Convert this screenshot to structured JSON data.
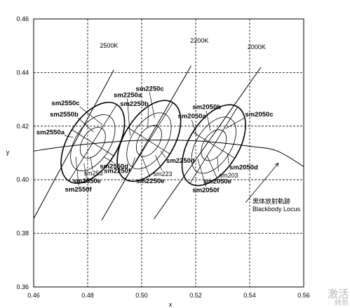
{
  "chart_data": {
    "type": "scatter",
    "xlabel": "x",
    "ylabel": "y",
    "xlim": [
      0.46,
      0.56
    ],
    "ylim": [
      0.36,
      0.46
    ],
    "xticks": [
      "0.46",
      "0.48",
      "0.50",
      "0.52",
      "0.54",
      "0.56"
    ],
    "yticks": [
      "0.36",
      "0.38",
      "0.40",
      "0.42",
      "0.44",
      "0.46"
    ],
    "grid": true,
    "blackbody_locus": {
      "label_line1": "黒体放射軌跡",
      "label_line2": "Blackbody Locus",
      "points": [
        [
          0.46,
          0.4107
        ],
        [
          0.47,
          0.4122
        ],
        [
          0.48,
          0.4133
        ],
        [
          0.49,
          0.4142
        ],
        [
          0.5,
          0.4147
        ],
        [
          0.51,
          0.4148
        ],
        [
          0.52,
          0.4145
        ],
        [
          0.53,
          0.4137
        ],
        [
          0.54,
          0.4125
        ],
        [
          0.55,
          0.4108
        ],
        [
          0.56,
          0.4049
        ]
      ]
    },
    "cct_lines": [
      {
        "label": "2500K",
        "from": [
          0.46,
          0.3855
        ],
        "to": [
          0.4897,
          0.441
        ],
        "label_at": [
          0.4845,
          0.4493
        ]
      },
      {
        "label": "2200K",
        "from": [
          0.4852,
          0.3849
        ],
        "to": [
          0.5183,
          0.4425
        ],
        "label_at": [
          0.518,
          0.4511
        ]
      },
      {
        "label": "2000K",
        "from": [
          0.5045,
          0.3853
        ],
        "to": [
          0.5441,
          0.4419
        ],
        "label_at": [
          0.5392,
          0.4487
        ]
      }
    ],
    "ellipse_groups": [
      {
        "center": [
          0.4819,
          0.4138
        ],
        "rx": [
          0.0063,
          0.0116,
          0.0167
        ],
        "ry": [
          0.0039,
          0.0065,
          0.0092
        ],
        "rotation_deg": 58,
        "labels": [
          {
            "text": "sm2550c",
            "bold": true,
            "at": [
              0.4666,
              0.4278
            ],
            "line_to": [
              0.4855,
              0.4205
            ]
          },
          {
            "text": "sm2550b",
            "bold": true,
            "at": [
              0.466,
              0.4236
            ],
            "line_to": [
              0.4822,
              0.4178
            ]
          },
          {
            "text": "sm2550a",
            "bold": true,
            "at": [
              0.461,
              0.417
            ],
            "line_to": [
              0.4746,
              0.4158
            ]
          },
          {
            "text": "sm2550d",
            "bold": true,
            "at": [
              0.4845,
              0.4043
            ],
            "line_to": [
              0.4858,
              0.4086
            ]
          },
          {
            "text": "sm253",
            "bold": false,
            "at": [
              0.4786,
              0.4016
            ],
            "line_to": [
              0.481,
              0.4086
            ]
          },
          {
            "text": "sm2550e",
            "bold": true,
            "at": [
              0.4745,
              0.3987
            ],
            "line_to": [
              0.4786,
              0.4061
            ]
          },
          {
            "text": "sm2550f",
            "bold": true,
            "at": [
              0.4716,
              0.3956
            ],
            "line_to": [
              0.4756,
              0.4086
            ]
          }
        ]
      },
      {
        "center": [
          0.5027,
          0.4145
        ],
        "rx": [
          0.0063,
          0.0116,
          0.0167
        ],
        "ry": [
          0.0039,
          0.0065,
          0.0092
        ],
        "rotation_deg": 58,
        "labels": [
          {
            "text": "sm2250c",
            "bold": true,
            "at": [
              0.4978,
              0.4332
            ],
            "line_to": [
              0.5048,
              0.423
            ]
          },
          {
            "text": "sm2250a",
            "bold": true,
            "at": [
              0.4896,
              0.4308
            ],
            "line_to": [
              0.4957,
              0.4165
            ]
          },
          {
            "text": "sm2250b",
            "bold": true,
            "at": [
              0.492,
              0.4276
            ],
            "line_to": [
              0.5023,
              0.4193
            ]
          },
          {
            "text": "sm2250d",
            "bold": true,
            "at": [
              0.5091,
              0.4063
            ],
            "line_to": [
              0.507,
              0.4107
            ]
          },
          {
            "text": "sm2250f",
            "bold": true,
            "at": [
              0.486,
              0.4026
            ],
            "line_to": [
              0.4975,
              0.4083
            ]
          },
          {
            "text": "sm223",
            "bold": false,
            "at": [
              0.5043,
              0.4014
            ],
            "line_to": [
              0.5051,
              0.4091
            ]
          },
          {
            "text": "sm2250e",
            "bold": true,
            "at": [
              0.498,
              0.3988
            ],
            "line_to": [
              0.5,
              0.4088
            ]
          }
        ]
      },
      {
        "center": [
          0.5267,
          0.4129
        ],
        "rx": [
          0.0063,
          0.0116,
          0.0167
        ],
        "ry": [
          0.0039,
          0.0065,
          0.0092
        ],
        "rotation_deg": 58,
        "labels": [
          {
            "text": "sm2050b",
            "bold": true,
            "at": [
              0.5188,
              0.4263
            ],
            "line_to": [
              0.5254,
              0.4183
            ]
          },
          {
            "text": "sm2050c",
            "bold": true,
            "at": [
              0.5383,
              0.4236
            ],
            "line_to": [
              0.5311,
              0.4191
            ]
          },
          {
            "text": "sm2050a",
            "bold": true,
            "at": [
              0.5134,
              0.4229
            ],
            "line_to": [
              0.5204,
              0.4165
            ]
          },
          {
            "text": "sm2050d",
            "bold": true,
            "at": [
              0.5325,
              0.4039
            ],
            "line_to": [
              0.5318,
              0.4096
            ]
          },
          {
            "text": "sm203",
            "bold": false,
            "at": [
              0.5287,
              0.4009
            ],
            "line_to": [
              0.528,
              0.4086
            ]
          },
          {
            "text": "sm2050e",
            "bold": true,
            "at": [
              0.5228,
              0.3986
            ],
            "line_to": [
              0.5242,
              0.4089
            ]
          },
          {
            "text": "sm2050f",
            "bold": true,
            "at": [
              0.5188,
              0.3953
            ],
            "line_to": [
              0.5208,
              0.4076
            ]
          }
        ]
      }
    ]
  },
  "watermark": {
    "line1": "激活",
    "line2": "转到"
  }
}
